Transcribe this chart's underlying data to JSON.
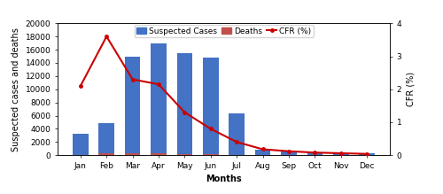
{
  "months": [
    "Jan",
    "Feb",
    "Mar",
    "Apr",
    "May",
    "Jun",
    "Jul",
    "Aug",
    "Sep",
    "Oct",
    "Nov",
    "Dec"
  ],
  "suspected_cases": [
    3200,
    4800,
    15000,
    17000,
    15500,
    14800,
    6400,
    800,
    600,
    400,
    350,
    250
  ],
  "deaths": [
    90,
    260,
    300,
    330,
    220,
    170,
    50,
    20,
    15,
    10,
    8,
    5
  ],
  "cfr": [
    2.1,
    3.6,
    2.3,
    2.15,
    1.3,
    0.8,
    0.4,
    0.18,
    0.12,
    0.08,
    0.06,
    0.04
  ],
  "bar_color_cases": "#4472C4",
  "bar_color_deaths": "#C0504D",
  "line_color": "#CC0000",
  "left_ylim": [
    0,
    20000
  ],
  "left_yticks": [
    0,
    2000,
    4000,
    6000,
    8000,
    10000,
    12000,
    14000,
    16000,
    18000,
    20000
  ],
  "right_ylim": [
    0,
    4
  ],
  "right_yticks": [
    0,
    1,
    2,
    3,
    4
  ],
  "ylabel_left": "Suspected cases and deaths",
  "ylabel_right": "CFR (%)",
  "xlabel": "Months",
  "legend_cases": "Suspected Cases",
  "legend_deaths": "Deaths",
  "legend_cfr": "CFR (%)",
  "background_color": "#FFFFFF",
  "label_fontsize": 7,
  "tick_fontsize": 6.5,
  "legend_fontsize": 6.5
}
